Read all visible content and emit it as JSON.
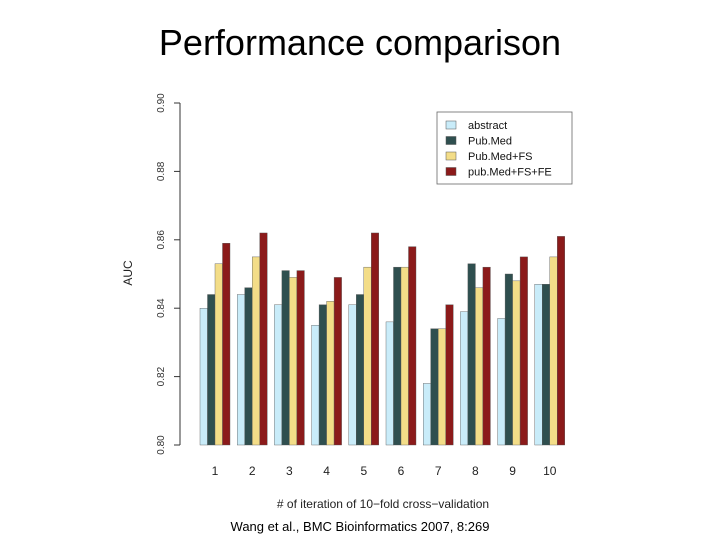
{
  "page": {
    "title": "Performance comparison",
    "citation": "Wang et al., BMC Bioinformatics 2007, 8:269"
  },
  "chart_data": {
    "type": "bar",
    "title": "",
    "xlabel": "# of iteration of 10−fold cross−validation",
    "ylabel": "AUC",
    "ylim": [
      0.8,
      0.9
    ],
    "yticks": [
      "0.80",
      "0.82",
      "0.84",
      "0.86",
      "0.88",
      "0.90"
    ],
    "grid": false,
    "legend_position": "top-right",
    "categories": [
      "1",
      "2",
      "3",
      "4",
      "5",
      "6",
      "7",
      "8",
      "9",
      "10"
    ],
    "series": [
      {
        "name": "abstract",
        "color": "#c9ecf9",
        "values": [
          0.84,
          0.844,
          0.841,
          0.835,
          0.841,
          0.836,
          0.818,
          0.839,
          0.837,
          0.847
        ]
      },
      {
        "name": "Pub.Med",
        "color": "#2f4f4f",
        "values": [
          0.844,
          0.846,
          0.851,
          0.841,
          0.844,
          0.852,
          0.834,
          0.853,
          0.85,
          0.847
        ]
      },
      {
        "name": "Pub.Med+FS",
        "color": "#f3dd88",
        "values": [
          0.853,
          0.855,
          0.849,
          0.842,
          0.852,
          0.852,
          0.834,
          0.846,
          0.848,
          0.855
        ]
      },
      {
        "name": "pub.Med+FS+FE",
        "color": "#8b1a1a",
        "values": [
          0.859,
          0.862,
          0.851,
          0.849,
          0.862,
          0.858,
          0.841,
          0.852,
          0.855,
          0.861
        ]
      }
    ]
  }
}
